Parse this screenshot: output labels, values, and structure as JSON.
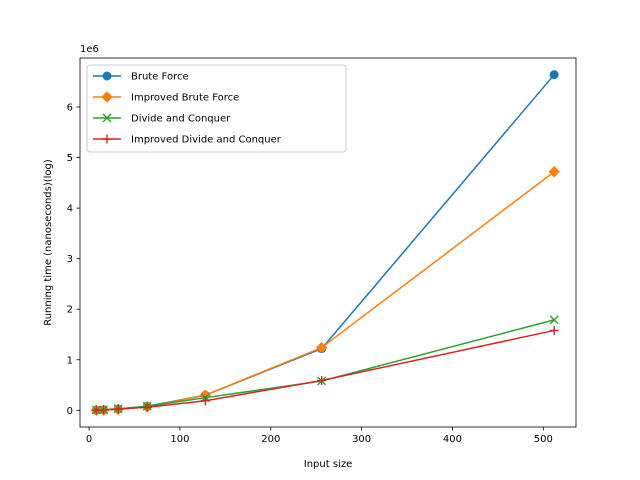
{
  "chart_data": {
    "type": "line",
    "xlabel": "Input size",
    "ylabel": "Running time (nanoseconds)(log)",
    "y_offset_label": "1e6",
    "xlim": [
      -10,
      536
    ],
    "ylim": [
      -330000,
      6970000
    ],
    "xticks": [
      0,
      100,
      200,
      300,
      400,
      500
    ],
    "yticks": [
      0,
      1000000,
      2000000,
      3000000,
      4000000,
      5000000,
      6000000
    ],
    "ytick_labels": [
      "0",
      "1",
      "2",
      "3",
      "4",
      "5",
      "6"
    ],
    "grid": false,
    "legend_position": "top-left",
    "series": [
      {
        "name": "Brute Force",
        "color": "#1f77b4",
        "marker": "circle",
        "x": [
          8,
          16,
          32,
          64,
          128,
          256,
          512
        ],
        "y": [
          3000,
          8000,
          25000,
          80000,
          300000,
          1220000,
          6640000
        ]
      },
      {
        "name": "Improved Brute Force",
        "color": "#ff7f0e",
        "marker": "diamond",
        "x": [
          8,
          16,
          32,
          64,
          128,
          256,
          512
        ],
        "y": [
          2000,
          5000,
          18000,
          70000,
          300000,
          1240000,
          4720000
        ]
      },
      {
        "name": "Divide and Conquer",
        "color": "#2ca02c",
        "marker": "x",
        "x": [
          8,
          16,
          32,
          64,
          128,
          256,
          512
        ],
        "y": [
          5000,
          12000,
          30000,
          80000,
          250000,
          580000,
          1790000
        ]
      },
      {
        "name": "Improved Divide and Conquer",
        "color": "#d62728",
        "marker": "plus",
        "x": [
          8,
          16,
          32,
          64,
          128,
          256,
          512
        ],
        "y": [
          4000,
          10000,
          25000,
          60000,
          190000,
          590000,
          1580000
        ]
      }
    ]
  }
}
